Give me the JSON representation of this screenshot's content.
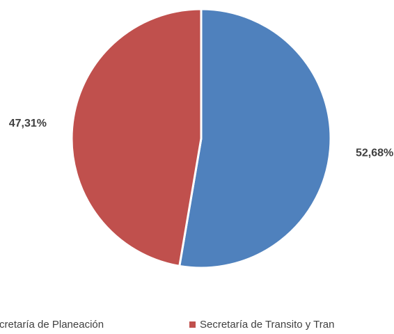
{
  "chart_data": {
    "type": "pie",
    "categories": [
      "cretaría de Planeación",
      "Secretaría de Transito y Tran"
    ],
    "values": [
      52.68,
      47.31
    ],
    "value_labels": [
      "52,68%",
      "47,31%"
    ],
    "colors": [
      "#4f81bd",
      "#c0504d"
    ]
  }
}
